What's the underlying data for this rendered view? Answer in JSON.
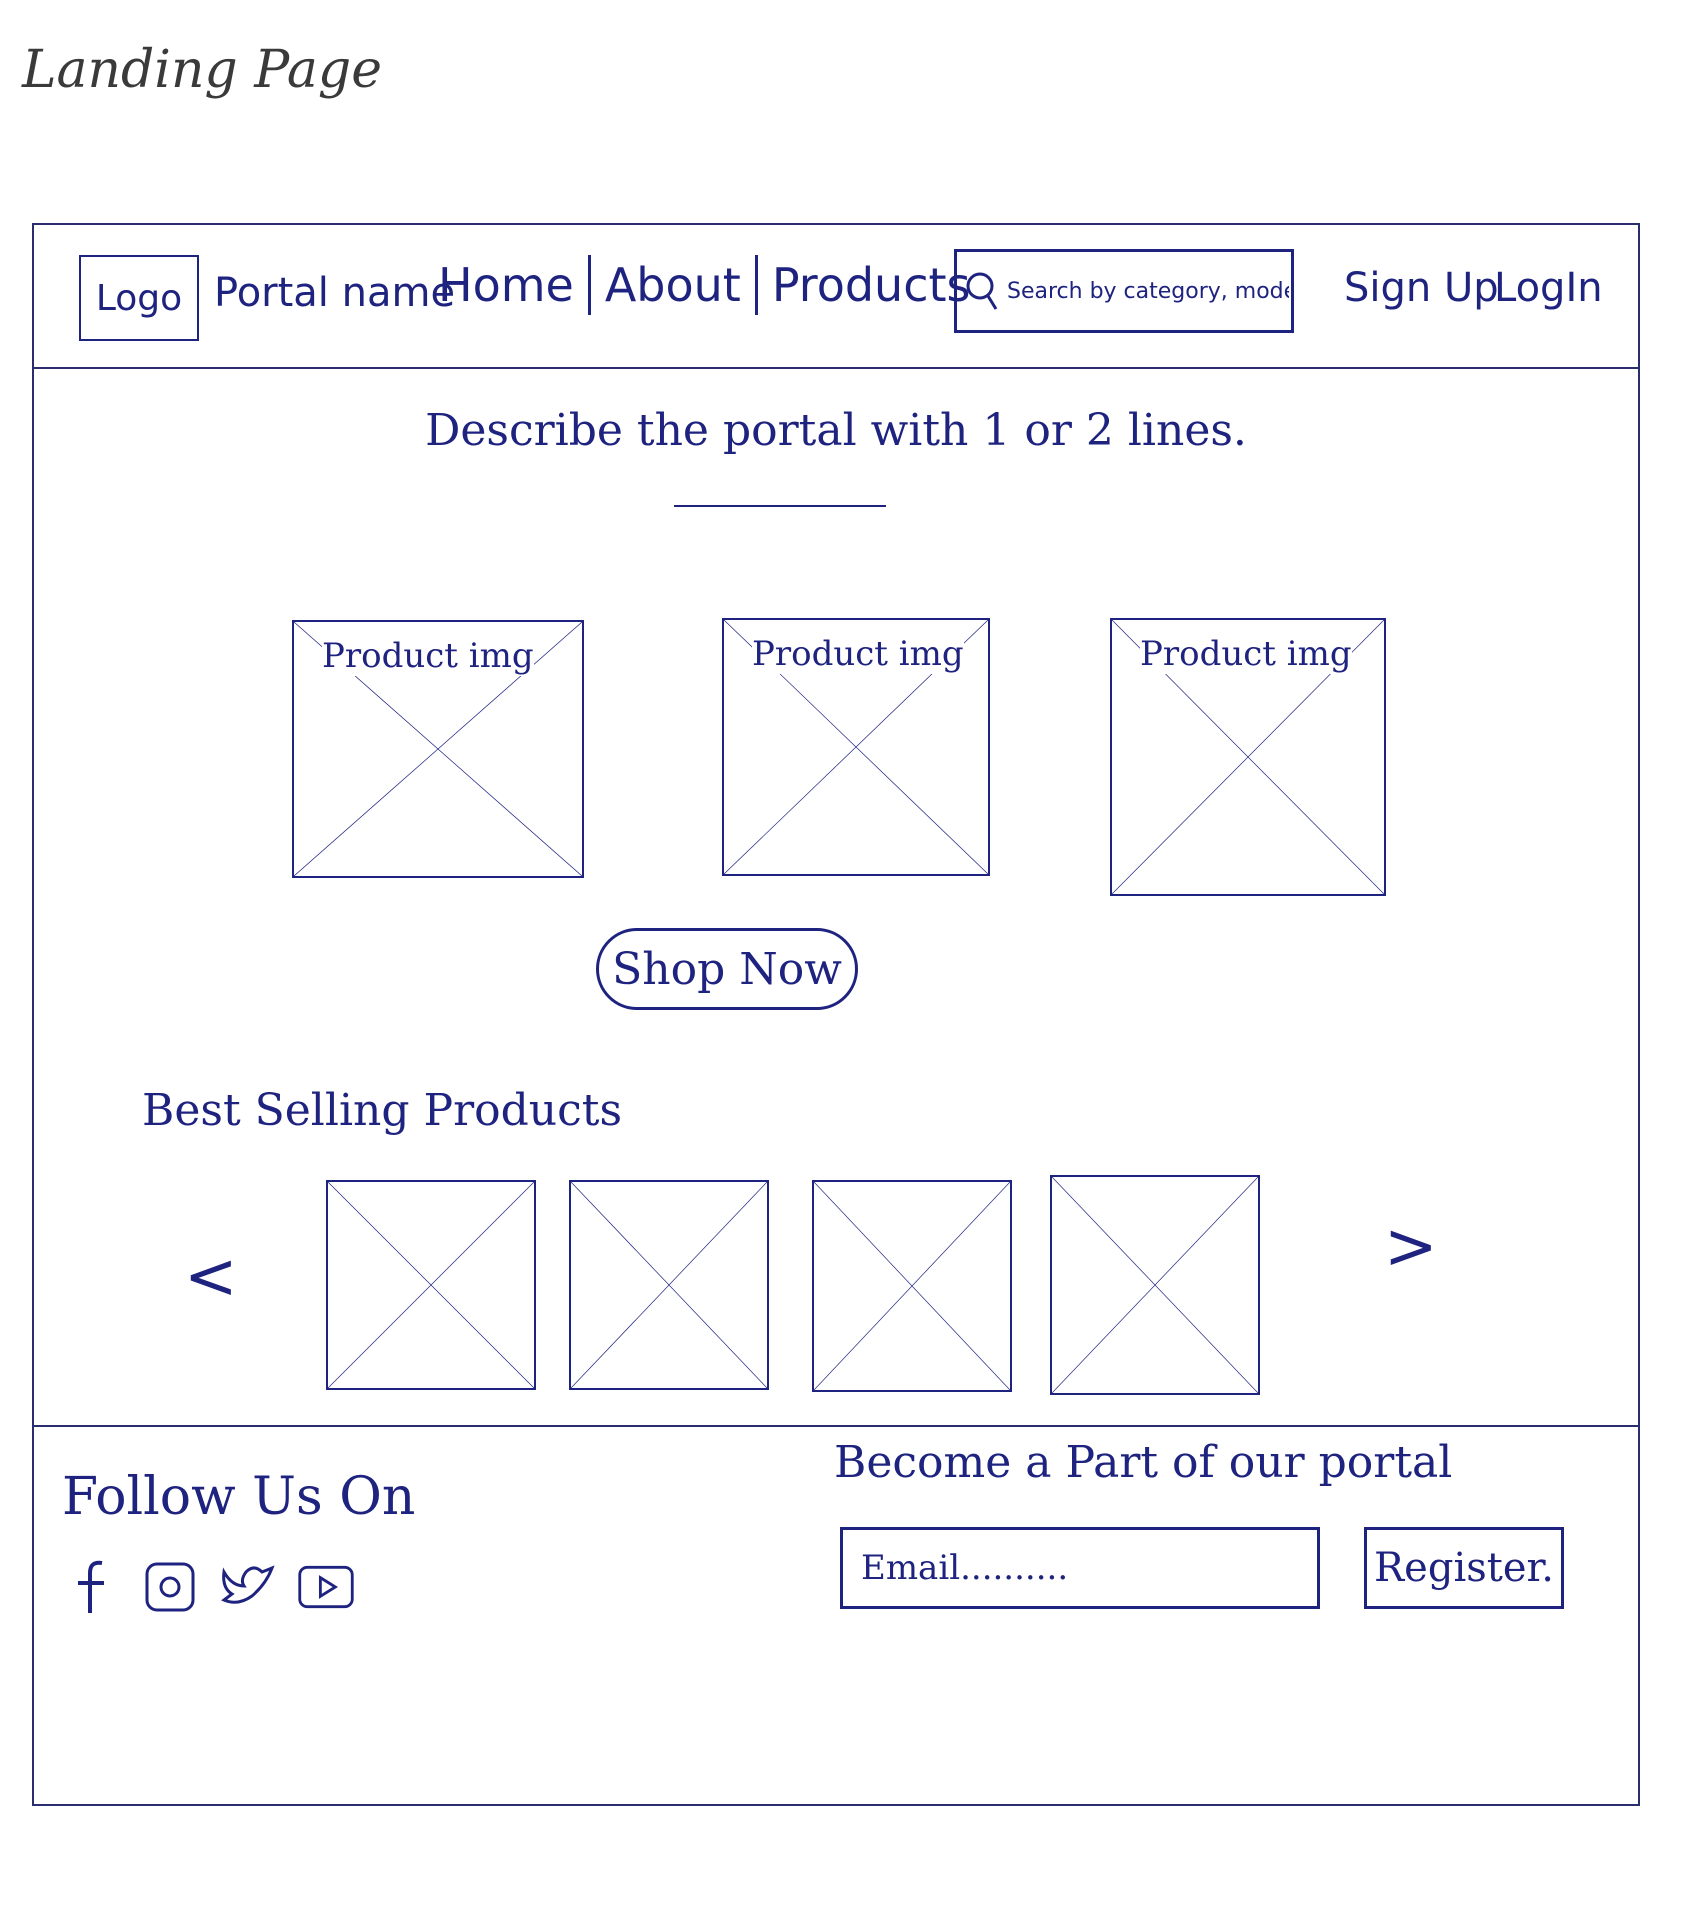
{
  "page": {
    "title": "Landing Page"
  },
  "header": {
    "logo": "Logo",
    "portal_name": "Portal name",
    "nav": [
      "Home",
      "About",
      "Products"
    ],
    "search_placeholder": "Search by category, model, ...",
    "signup": "Sign Up",
    "login": "LogIn"
  },
  "hero": {
    "tagline": "Describe the portal with 1 or 2 lines.",
    "products": [
      {
        "label": "Product img"
      },
      {
        "label": "Product img"
      },
      {
        "label": "Product img"
      }
    ],
    "shop_button": "Shop Now"
  },
  "best_selling": {
    "title": "Best Selling Products",
    "prev": "<",
    "next": ">"
  },
  "footer": {
    "follow_title": "Follow Us On",
    "socials": [
      "facebook-icon",
      "instagram-icon",
      "twitter-icon",
      "youtube-icon"
    ],
    "signup_title": "Become a Part of our portal",
    "email_placeholder": "Email..........",
    "register_button": "Register."
  }
}
